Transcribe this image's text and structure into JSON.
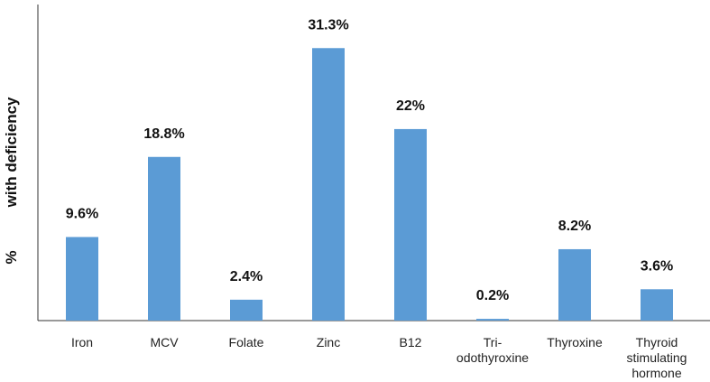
{
  "chart_data": {
    "type": "bar",
    "title": "",
    "xlabel": "",
    "ylabel_prefix": "%",
    "ylabel": "with deficiency",
    "categories": [
      "Iron",
      "MCV",
      "Folate",
      "Zinc",
      "B12",
      "Tri-\nodothyroxine",
      "Thyroxine",
      "Thyroid\nstimulating\nhormone"
    ],
    "values": [
      9.6,
      18.8,
      2.4,
      31.3,
      22,
      0.2,
      8.2,
      3.6
    ],
    "data_labels": [
      "9.6%",
      "18.8%",
      "2.4%",
      "31.3%",
      "22%",
      "0.2%",
      "8.2%",
      "3.6%"
    ],
    "ylim": [
      0,
      35
    ],
    "grid": false,
    "legend": "none",
    "bar_color": "#5b9bd5"
  }
}
